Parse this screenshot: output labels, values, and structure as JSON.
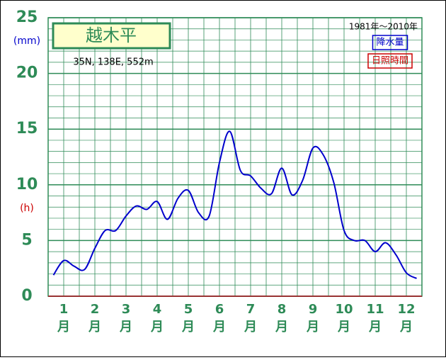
{
  "chart_data": {
    "type": "line",
    "title": "越木平",
    "subtitle": "35N,  138E,  552m",
    "period": "1981年〜2010年",
    "y_unit_left": "(mm)",
    "y_unit_right": "(h)",
    "x_tick_labels": [
      {
        "num": "1",
        "unit": "月"
      },
      {
        "num": "2",
        "unit": "月"
      },
      {
        "num": "3",
        "unit": "月"
      },
      {
        "num": "4",
        "unit": "月"
      },
      {
        "num": "5",
        "unit": "月"
      },
      {
        "num": "6",
        "unit": "月"
      },
      {
        "num": "7",
        "unit": "月"
      },
      {
        "num": "8",
        "unit": "月"
      },
      {
        "num": "9",
        "unit": "月"
      },
      {
        "num": "10",
        "unit": "月"
      },
      {
        "num": "11",
        "unit": "月"
      },
      {
        "num": "12",
        "unit": "月"
      }
    ],
    "x": [
      0.17,
      0.5,
      0.83,
      1.17,
      1.5,
      1.83,
      2.17,
      2.5,
      2.83,
      3.17,
      3.5,
      3.83,
      4.17,
      4.5,
      4.83,
      5.17,
      5.5,
      5.83,
      6.17,
      6.5,
      6.83,
      7.17,
      7.5,
      7.83,
      8.17,
      8.5,
      8.83,
      9.17,
      9.5,
      9.83,
      10.17,
      10.5,
      10.83,
      11.17,
      11.5,
      11.83
    ],
    "series": [
      {
        "name": "降水量",
        "color": "#0000cc",
        "values": [
          1.9,
          3.2,
          2.7,
          2.4,
          4.3,
          5.9,
          5.9,
          7.2,
          8.1,
          7.8,
          8.5,
          6.9,
          8.8,
          9.5,
          7.5,
          7.2,
          12.0,
          14.8,
          11.3,
          10.8,
          9.7,
          9.2,
          11.5,
          9.1,
          10.4,
          13.3,
          12.7,
          10.2,
          5.9,
          5.0,
          5.0,
          4.0,
          4.8,
          3.7,
          2.1,
          1.6
        ]
      },
      {
        "name": "日照時間",
        "color": "#cc0000",
        "values": [
          null,
          null,
          null,
          null,
          null,
          null,
          null,
          null,
          null,
          null,
          null,
          null,
          null,
          null,
          null,
          null,
          null,
          null,
          null,
          null,
          null,
          null,
          null,
          null,
          null,
          null,
          null,
          null,
          null,
          null,
          null,
          null,
          null,
          null,
          null,
          null
        ]
      }
    ],
    "xlim": [
      0,
      12
    ],
    "ylim": [
      0,
      25
    ],
    "yticks": [
      0,
      5,
      10,
      15,
      20,
      25
    ],
    "y_minor_step": 1,
    "x_grid_step": 0.5,
    "grid": true
  }
}
